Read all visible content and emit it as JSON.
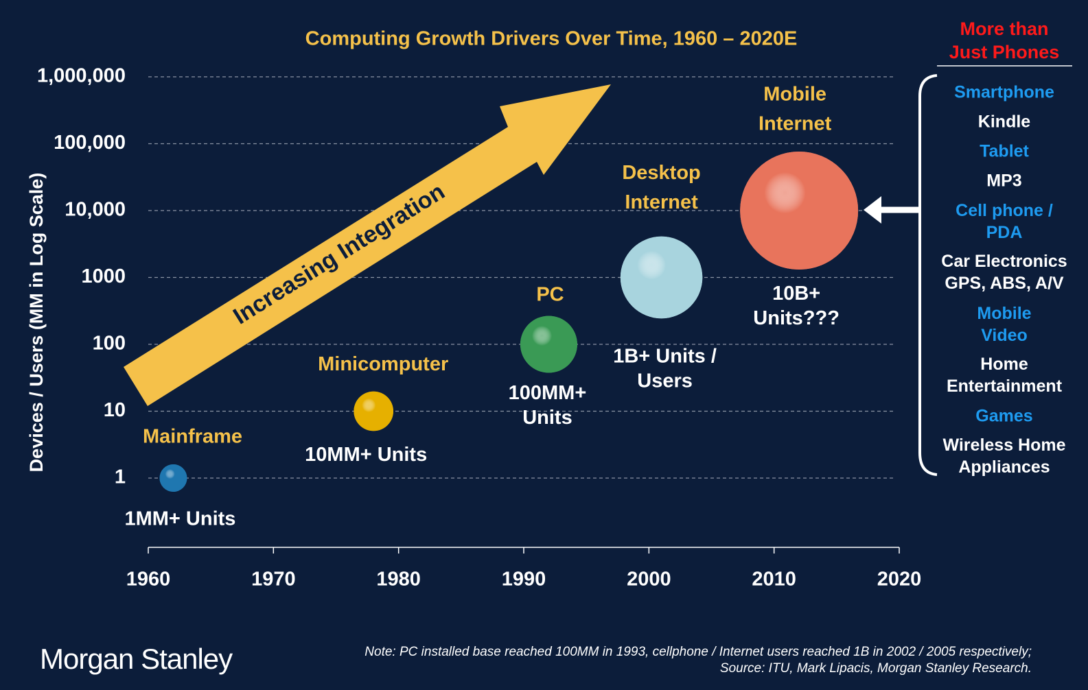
{
  "chart_data": {
    "type": "bubble",
    "title": "Computing Growth Drivers Over Time, 1960 – 2020E",
    "y_label": "Devices / Users (MM in Log Scale)",
    "log_y": true,
    "grid": true,
    "xlim": [
      1960,
      2020
    ],
    "xticks": [
      1960,
      1970,
      1980,
      1990,
      2000,
      2010,
      2020
    ],
    "ylim": [
      1,
      1000000
    ],
    "yticks": [
      1,
      10,
      100,
      1000,
      {
        "value": 10000,
        "label": "10,000"
      },
      {
        "value": 100000,
        "label": "100,000"
      },
      {
        "value": 1000000,
        "label": "1,000,000"
      }
    ],
    "categories": [
      "Mainframe",
      "Minicomputer",
      "PC",
      "Desktop\nInternet",
      "Mobile\nInternet"
    ],
    "x": [
      1962,
      1978,
      1992,
      2001,
      2012
    ],
    "values": [
      1,
      10,
      100,
      1000,
      10000
    ],
    "value_labels": [
      "1MM+ Units",
      "10MM+ Units",
      "100MM+\nUnits",
      "1B+ Units /\nUsers",
      "10B+\nUnits???"
    ],
    "colors": [
      "#1f77b0",
      "#e6b000",
      "#3a9a55",
      "#a8d4de",
      "#e8745c"
    ],
    "annotation": "Increasing Integration",
    "side_panel": {
      "title": "More than\nJust Phones",
      "items": [
        {
          "text": "Smartphone",
          "color": "#1e9bf0"
        },
        {
          "text": "Kindle",
          "color": "#ffffff"
        },
        {
          "text": "Tablet",
          "color": "#1e9bf0"
        },
        {
          "text": "MP3",
          "color": "#ffffff"
        },
        {
          "text": "Cell phone /\nPDA",
          "color": "#1e9bf0"
        },
        {
          "text": "Car Electronics\nGPS, ABS, A/V",
          "color": "#ffffff"
        },
        {
          "text": "Mobile\nVideo",
          "color": "#1e9bf0"
        },
        {
          "text": "Home\nEntertainment",
          "color": "#ffffff"
        },
        {
          "text": "Games",
          "color": "#1e9bf0"
        },
        {
          "text": "Wireless Home\nAppliances",
          "color": "#ffffff"
        }
      ]
    },
    "note": [
      "Note: PC installed base reached 100MM in 1993, cellphone / Internet users reached 1B in 2002 / 2005 respectively;",
      "Source: ITU, Mark Lipacis, Morgan Stanley Research."
    ],
    "brand": "Morgan Stanley"
  }
}
